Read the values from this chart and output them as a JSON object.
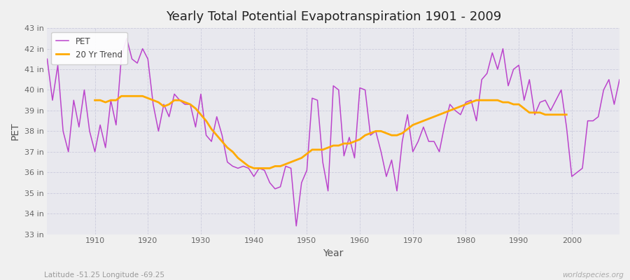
{
  "title": "Yearly Total Potential Evapotranspiration 1901 - 2009",
  "xlabel": "Year",
  "ylabel": "PET",
  "subtitle_lat_lon": "Latitude -51.25 Longitude -69.25",
  "watermark": "worldspecies.org",
  "pet_color": "#bb44cc",
  "trend_color": "#ffaa00",
  "bg_color": "#f0f0f0",
  "plot_bg_color": "#e8e8ee",
  "years": [
    1901,
    1902,
    1903,
    1904,
    1905,
    1906,
    1907,
    1908,
    1909,
    1910,
    1911,
    1912,
    1913,
    1914,
    1915,
    1916,
    1917,
    1918,
    1919,
    1920,
    1921,
    1922,
    1923,
    1924,
    1925,
    1926,
    1927,
    1928,
    1929,
    1930,
    1931,
    1932,
    1933,
    1934,
    1935,
    1936,
    1937,
    1938,
    1939,
    1940,
    1941,
    1942,
    1943,
    1944,
    1945,
    1946,
    1947,
    1948,
    1949,
    1950,
    1951,
    1952,
    1953,
    1954,
    1955,
    1956,
    1957,
    1958,
    1959,
    1960,
    1961,
    1962,
    1963,
    1964,
    1965,
    1966,
    1967,
    1968,
    1969,
    1970,
    1971,
    1972,
    1973,
    1974,
    1975,
    1976,
    1977,
    1978,
    1979,
    1980,
    1981,
    1982,
    1983,
    1984,
    1985,
    1986,
    1987,
    1988,
    1989,
    1990,
    1991,
    1992,
    1993,
    1994,
    1995,
    1996,
    1997,
    1998,
    1999,
    2000,
    2001,
    2002,
    2003,
    2004,
    2005,
    2006,
    2007,
    2008,
    2009
  ],
  "pet_values": [
    41.5,
    39.5,
    41.2,
    38.0,
    37.0,
    39.5,
    38.2,
    40.0,
    38.0,
    37.0,
    38.3,
    37.2,
    39.5,
    38.3,
    41.6,
    42.5,
    41.5,
    41.3,
    42.0,
    41.5,
    39.3,
    38.0,
    39.3,
    38.7,
    39.8,
    39.5,
    39.3,
    39.3,
    38.2,
    39.8,
    37.8,
    37.5,
    38.7,
    37.8,
    36.5,
    36.3,
    36.2,
    36.3,
    36.2,
    35.8,
    36.2,
    36.1,
    35.5,
    35.2,
    35.3,
    36.3,
    36.2,
    33.4,
    35.5,
    36.1,
    39.6,
    39.5,
    36.5,
    35.1,
    40.2,
    40.0,
    36.8,
    37.7,
    36.7,
    40.1,
    40.0,
    37.8,
    38.0,
    37.0,
    35.8,
    36.6,
    35.1,
    37.5,
    38.8,
    37.0,
    37.5,
    38.2,
    37.5,
    37.5,
    37.0,
    38.3,
    39.3,
    39.0,
    38.8,
    39.4,
    39.5,
    38.5,
    40.5,
    40.8,
    41.8,
    41.0,
    42.0,
    40.2,
    41.0,
    41.2,
    39.5,
    40.5,
    38.8,
    39.4,
    39.5,
    39.0,
    39.5,
    40.0,
    38.2,
    35.8,
    36.0,
    36.2,
    38.5,
    38.5,
    38.7,
    40.0,
    40.5,
    39.3,
    40.5
  ],
  "trend_years": [
    1910,
    1911,
    1912,
    1913,
    1914,
    1915,
    1916,
    1917,
    1918,
    1919,
    1920,
    1921,
    1922,
    1923,
    1924,
    1925,
    1926,
    1927,
    1928,
    1929,
    1930,
    1931,
    1932,
    1933,
    1934,
    1935,
    1936,
    1937,
    1938,
    1939,
    1940,
    1941,
    1942,
    1943,
    1944,
    1945,
    1946,
    1947,
    1948,
    1949,
    1950,
    1951,
    1952,
    1953,
    1954,
    1955,
    1956,
    1957,
    1958,
    1959,
    1960,
    1961,
    1962,
    1963,
    1964,
    1965,
    1966,
    1967,
    1968,
    1969,
    1970,
    1971,
    1972,
    1973,
    1974,
    1975,
    1976,
    1977,
    1978,
    1979,
    1980,
    1981,
    1982,
    1983,
    1984,
    1985,
    1986,
    1987,
    1988,
    1989,
    1990,
    1991,
    1992,
    1993,
    1994,
    1995,
    1996,
    1997,
    1998,
    1999
  ],
  "trend_values": [
    39.5,
    39.5,
    39.4,
    39.5,
    39.5,
    39.7,
    39.7,
    39.7,
    39.7,
    39.7,
    39.6,
    39.5,
    39.4,
    39.2,
    39.3,
    39.5,
    39.5,
    39.4,
    39.3,
    39.1,
    38.8,
    38.5,
    38.1,
    37.8,
    37.5,
    37.2,
    37.0,
    36.7,
    36.5,
    36.3,
    36.2,
    36.2,
    36.2,
    36.2,
    36.3,
    36.3,
    36.4,
    36.5,
    36.6,
    36.7,
    36.9,
    37.1,
    37.1,
    37.1,
    37.2,
    37.3,
    37.3,
    37.4,
    37.4,
    37.5,
    37.6,
    37.8,
    37.9,
    38.0,
    38.0,
    37.9,
    37.8,
    37.8,
    37.9,
    38.1,
    38.3,
    38.4,
    38.5,
    38.6,
    38.7,
    38.8,
    38.9,
    39.0,
    39.1,
    39.2,
    39.3,
    39.4,
    39.5,
    39.5,
    39.5,
    39.5,
    39.5,
    39.4,
    39.4,
    39.3,
    39.3,
    39.1,
    38.9,
    38.9,
    38.9,
    38.8,
    38.8,
    38.8,
    38.8,
    38.8
  ]
}
